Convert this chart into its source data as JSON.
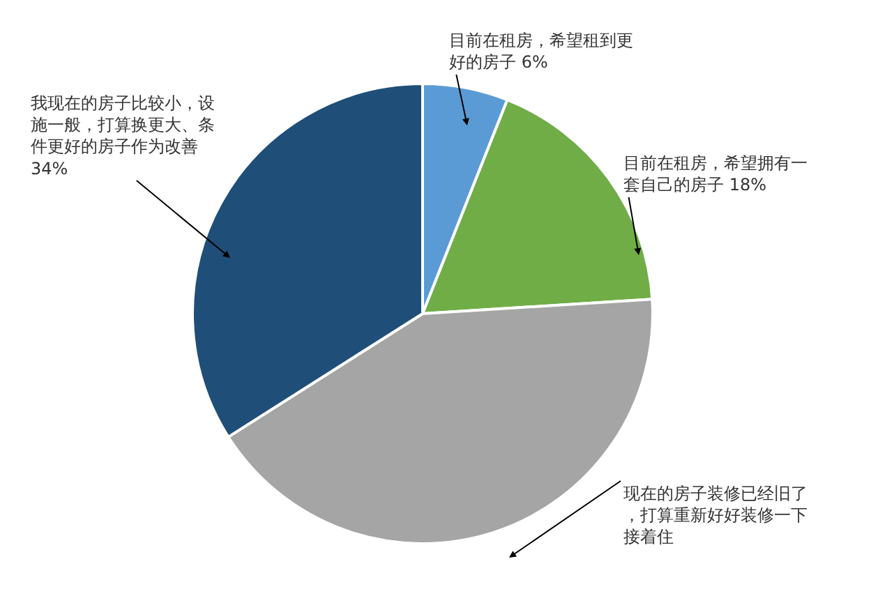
{
  "chart_data": {
    "type": "pie",
    "categories": [
      "目前在租房，希望租到更好的房子",
      "目前在租房，希望拥有一套自己的房子",
      "现在的房子装修已经旧了，打算重新好好装修一下接着住",
      "我现在的房子比较小，设施一般，打算换更大、条件更好的房子作为改善"
    ],
    "values": [
      6,
      18,
      42,
      34
    ],
    "colors": [
      "#5b9bd5",
      "#70ad47",
      "#a5a5a5",
      "#1f4e79"
    ],
    "value_labels": [
      "6%",
      "18%",
      null,
      "34%"
    ]
  }
}
